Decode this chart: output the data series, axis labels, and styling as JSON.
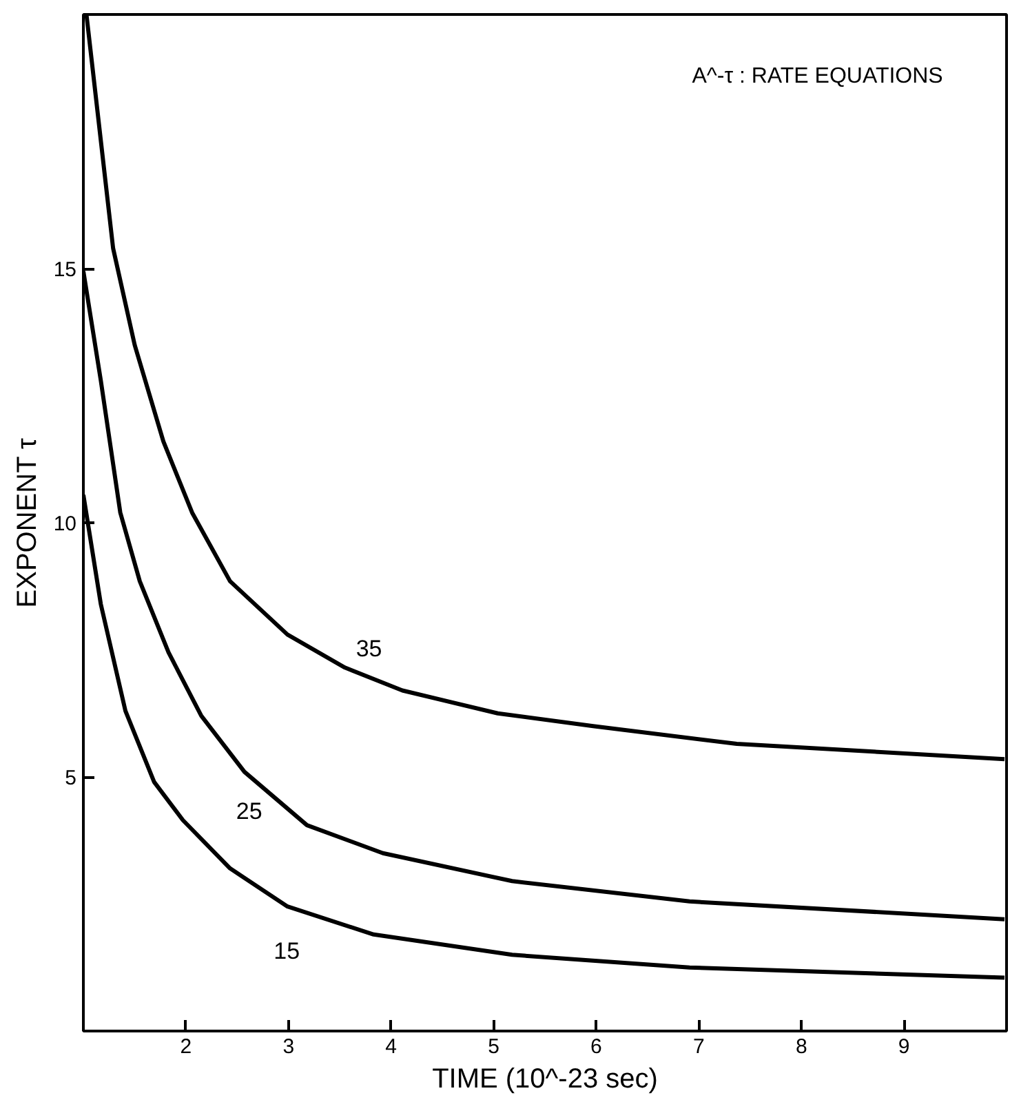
{
  "chart_data": {
    "type": "line",
    "title": "A^-τ : RATE EQUATIONS",
    "xlabel": "TIME (10^-23 sec)",
    "ylabel": "EXPONENT τ",
    "xlim": [
      1,
      10
    ],
    "ylim": [
      0,
      20
    ],
    "xticks": [
      2,
      3,
      4,
      5,
      6,
      7,
      8,
      9
    ],
    "yticks": [
      5,
      10,
      15
    ],
    "grid": false,
    "marker": "none",
    "line_style": "solid",
    "series": [
      {
        "name": "35",
        "color": "#000000",
        "x": [
          1.03,
          1.29,
          1.5,
          1.78,
          2.06,
          2.43,
          2.99,
          3.55,
          4.11,
          5.04,
          5.97,
          7.37,
          9.98
        ],
        "values": [
          20.0,
          15.4,
          13.5,
          11.6,
          10.2,
          8.85,
          7.8,
          7.15,
          6.7,
          6.25,
          6.0,
          5.65,
          5.35
        ]
      },
      {
        "name": "25",
        "color": "#000000",
        "x": [
          1.0,
          1.17,
          1.36,
          1.55,
          1.83,
          2.15,
          2.57,
          3.18,
          3.92,
          5.18,
          6.91,
          9.98
        ],
        "values": [
          14.95,
          12.8,
          10.2,
          8.85,
          7.45,
          6.2,
          5.1,
          4.05,
          3.5,
          2.95,
          2.55,
          2.2
        ]
      },
      {
        "name": "15",
        "color": "#000000",
        "x": [
          1.0,
          1.17,
          1.41,
          1.69,
          1.97,
          2.43,
          2.99,
          3.83,
          5.18,
          6.91,
          9.98
        ],
        "values": [
          10.55,
          8.4,
          6.3,
          4.9,
          4.15,
          3.2,
          2.45,
          1.9,
          1.5,
          1.25,
          1.05
        ]
      }
    ]
  }
}
